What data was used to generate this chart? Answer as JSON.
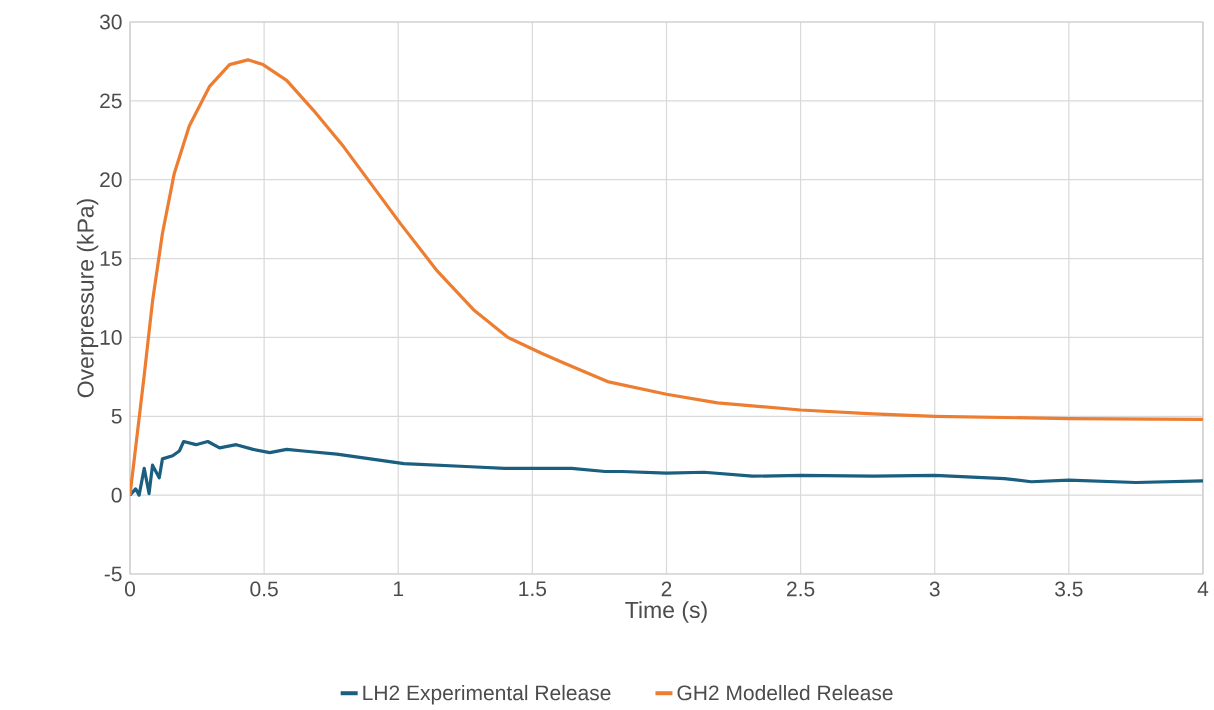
{
  "chart_data": {
    "type": "line",
    "xlabel": "Time (s)",
    "ylabel": "Overpressure (kPa)",
    "xlim": [
      0,
      4
    ],
    "ylim": [
      -5,
      30
    ],
    "xticks": [
      0,
      0.5,
      1,
      1.5,
      2,
      2.5,
      3,
      3.5,
      4
    ],
    "yticks": [
      -5,
      0,
      5,
      10,
      15,
      20,
      25,
      30
    ],
    "grid": true,
    "legend": "bottom",
    "series": [
      {
        "name": "LH2 Experimental Release",
        "color": "#1a5e80",
        "x": [
          0,
          0.021,
          0.034,
          0.053,
          0.071,
          0.084,
          0.109,
          0.121,
          0.159,
          0.184,
          0.2,
          0.246,
          0.29,
          0.334,
          0.396,
          0.459,
          0.521,
          0.584,
          0.646,
          0.771,
          0.896,
          1.021,
          1.146,
          1.271,
          1.396,
          1.521,
          1.646,
          1.771,
          1.834,
          2,
          2.14,
          2.32,
          2.5,
          2.77,
          3,
          3.26,
          3.36,
          3.5,
          3.75,
          4
        ],
        "values": [
          0,
          0.4,
          0,
          1.7,
          0.1,
          1.9,
          1.1,
          2.3,
          2.5,
          2.8,
          3.4,
          3.2,
          3.4,
          3.0,
          3.2,
          2.9,
          2.7,
          2.9,
          2.8,
          2.6,
          2.3,
          2.0,
          1.9,
          1.8,
          1.7,
          1.7,
          1.7,
          1.5,
          1.5,
          1.4,
          1.45,
          1.2,
          1.25,
          1.2,
          1.25,
          1.05,
          0.85,
          0.95,
          0.8,
          0.9
        ]
      },
      {
        "name": "GH2 Modelled Release",
        "color": "#ed7d31",
        "x": [
          0,
          0.053,
          0.084,
          0.121,
          0.165,
          0.221,
          0.296,
          0.371,
          0.44,
          0.496,
          0.584,
          0.684,
          0.796,
          0.909,
          1.009,
          1.146,
          1.284,
          1.409,
          1.534,
          1.615,
          1.78,
          2,
          2.19,
          2.5,
          2.77,
          3,
          3.5,
          4
        ],
        "values": [
          0,
          7.6,
          12.3,
          16.6,
          20.4,
          23.4,
          25.9,
          27.3,
          27.6,
          27.3,
          26.3,
          24.4,
          22.1,
          19.5,
          17.2,
          14.2,
          11.7,
          10.0,
          9.0,
          8.4,
          7.2,
          6.4,
          5.85,
          5.4,
          5.15,
          5.0,
          4.85,
          4.8
        ]
      }
    ]
  }
}
